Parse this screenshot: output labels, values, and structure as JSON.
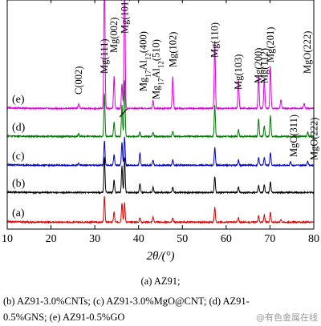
{
  "chart_data": {
    "type": "line",
    "xlabel": "2θ/(°)",
    "xlim": [
      10,
      80
    ],
    "x_ticks": [
      10,
      20,
      30,
      40,
      50,
      60,
      70,
      80
    ],
    "y_ticks_shown": false,
    "grid": false,
    "series": [
      {
        "name": "(a)",
        "color": "#e00000",
        "peaks": [
          {
            "x": 32.2,
            "h": 0.72
          },
          {
            "x": 34.4,
            "h": 0.28
          },
          {
            "x": 36.2,
            "h": 0.55
          },
          {
            "x": 36.8,
            "h": 0.55
          },
          {
            "x": 40.3,
            "h": 0.12
          },
          {
            "x": 43.3,
            "h": 0.15
          },
          {
            "x": 47.8,
            "h": 0.12
          },
          {
            "x": 57.4,
            "h": 0.42
          },
          {
            "x": 62.8,
            "h": 0.12
          },
          {
            "x": 67.4,
            "h": 0.18
          },
          {
            "x": 68.7,
            "h": 0.2
          },
          {
            "x": 70.1,
            "h": 0.28
          },
          {
            "x": 72.5,
            "h": 0.08
          }
        ]
      },
      {
        "name": "(b)",
        "color": "#000000",
        "peaks": [
          {
            "x": 32.2,
            "h": 1.0
          },
          {
            "x": 34.4,
            "h": 0.35
          },
          {
            "x": 36.2,
            "h": 0.75
          },
          {
            "x": 36.8,
            "h": 1.0
          },
          {
            "x": 40.3,
            "h": 0.25
          },
          {
            "x": 43.3,
            "h": 0.15
          },
          {
            "x": 47.8,
            "h": 0.15
          },
          {
            "x": 57.4,
            "h": 0.45
          },
          {
            "x": 62.8,
            "h": 0.15
          },
          {
            "x": 67.4,
            "h": 0.2
          },
          {
            "x": 68.7,
            "h": 0.22
          },
          {
            "x": 70.1,
            "h": 0.3
          }
        ]
      },
      {
        "name": "(c)",
        "color": "#0000cc",
        "peaks": [
          {
            "x": 26.3,
            "h": 0.06
          },
          {
            "x": 32.2,
            "h": 0.7
          },
          {
            "x": 34.4,
            "h": 0.3
          },
          {
            "x": 36.2,
            "h": 0.65
          },
          {
            "x": 36.8,
            "h": 0.8
          },
          {
            "x": 40.3,
            "h": 0.35
          },
          {
            "x": 43.3,
            "h": 0.15
          },
          {
            "x": 47.8,
            "h": 0.15
          },
          {
            "x": 57.4,
            "h": 0.5
          },
          {
            "x": 62.8,
            "h": 0.15
          },
          {
            "x": 67.4,
            "h": 0.22
          },
          {
            "x": 68.7,
            "h": 0.22
          },
          {
            "x": 70.1,
            "h": 0.35
          },
          {
            "x": 74.7,
            "h": 0.1
          },
          {
            "x": 78.6,
            "h": 0.12
          }
        ]
      },
      {
        "name": "(d)",
        "color": "#007a00",
        "peaks": [
          {
            "x": 26.3,
            "h": 0.08
          },
          {
            "x": 32.2,
            "h": 1.2
          },
          {
            "x": 34.4,
            "h": 0.4
          },
          {
            "x": 36.2,
            "h": 0.9
          },
          {
            "x": 36.8,
            "h": 1.6
          },
          {
            "x": 40.3,
            "h": 0.12
          },
          {
            "x": 43.3,
            "h": 0.12
          },
          {
            "x": 47.8,
            "h": 0.15
          },
          {
            "x": 57.4,
            "h": 0.9
          },
          {
            "x": 62.8,
            "h": 0.2
          },
          {
            "x": 67.4,
            "h": 0.5
          },
          {
            "x": 68.7,
            "h": 0.3
          },
          {
            "x": 70.1,
            "h": 0.6
          },
          {
            "x": 78.6,
            "h": 0.12
          }
        ]
      },
      {
        "name": "(e)",
        "color": "#e000e0",
        "peaks": [
          {
            "x": 26.3,
            "h": 0.12
          },
          {
            "x": 32.2,
            "h": 4.0
          },
          {
            "x": 34.4,
            "h": 0.9
          },
          {
            "x": 36.2,
            "h": 0.7
          },
          {
            "x": 36.8,
            "h": 4.0
          },
          {
            "x": 43.3,
            "h": 0.22
          },
          {
            "x": 47.8,
            "h": 0.9
          },
          {
            "x": 57.4,
            "h": 1.9
          },
          {
            "x": 62.8,
            "h": 0.8
          },
          {
            "x": 67.4,
            "h": 0.95
          },
          {
            "x": 68.7,
            "h": 0.85
          },
          {
            "x": 70.1,
            "h": 1.2
          },
          {
            "x": 72.5,
            "h": 0.25
          },
          {
            "x": 77.8,
            "h": 0.15
          }
        ]
      }
    ],
    "annotations": [
      {
        "text": "C(002)",
        "x": 26.3
      },
      {
        "text": "Mg(111)",
        "x": 32.2
      },
      {
        "text": "Mg(002)",
        "x": 34.4
      },
      {
        "text": "Mg(101)",
        "x": 36.8
      },
      {
        "text": "Mg17Al12(400)",
        "x": 40.3
      },
      {
        "text": "Mg17Al12(510)",
        "x": 43.3
      },
      {
        "text": "Mg(102)",
        "x": 47.8
      },
      {
        "text": "Mg(110)",
        "x": 57.4
      },
      {
        "text": "Mg(103)",
        "x": 62.8
      },
      {
        "text": "Mg(200)",
        "x": 67.4
      },
      {
        "text": "Mg(112)",
        "x": 68.7
      },
      {
        "text": "Mg(201)",
        "x": 70.1
      },
      {
        "text": "MgO(222)",
        "x": 77.8
      },
      {
        "text": "MgO(311)",
        "x": 74.7
      },
      {
        "text": "MgO(222)",
        "x": 78.6
      }
    ]
  },
  "caption": {
    "line1": "(a)  AZ91;",
    "line2": "(b) AZ91-3.0%CNTs; (c) AZ91-3.0%MgO@CNT; (d) AZ91-",
    "line3": "0.5%GNS; (e) AZ91-0.5%GO"
  },
  "watermark": "@有色金属在线"
}
